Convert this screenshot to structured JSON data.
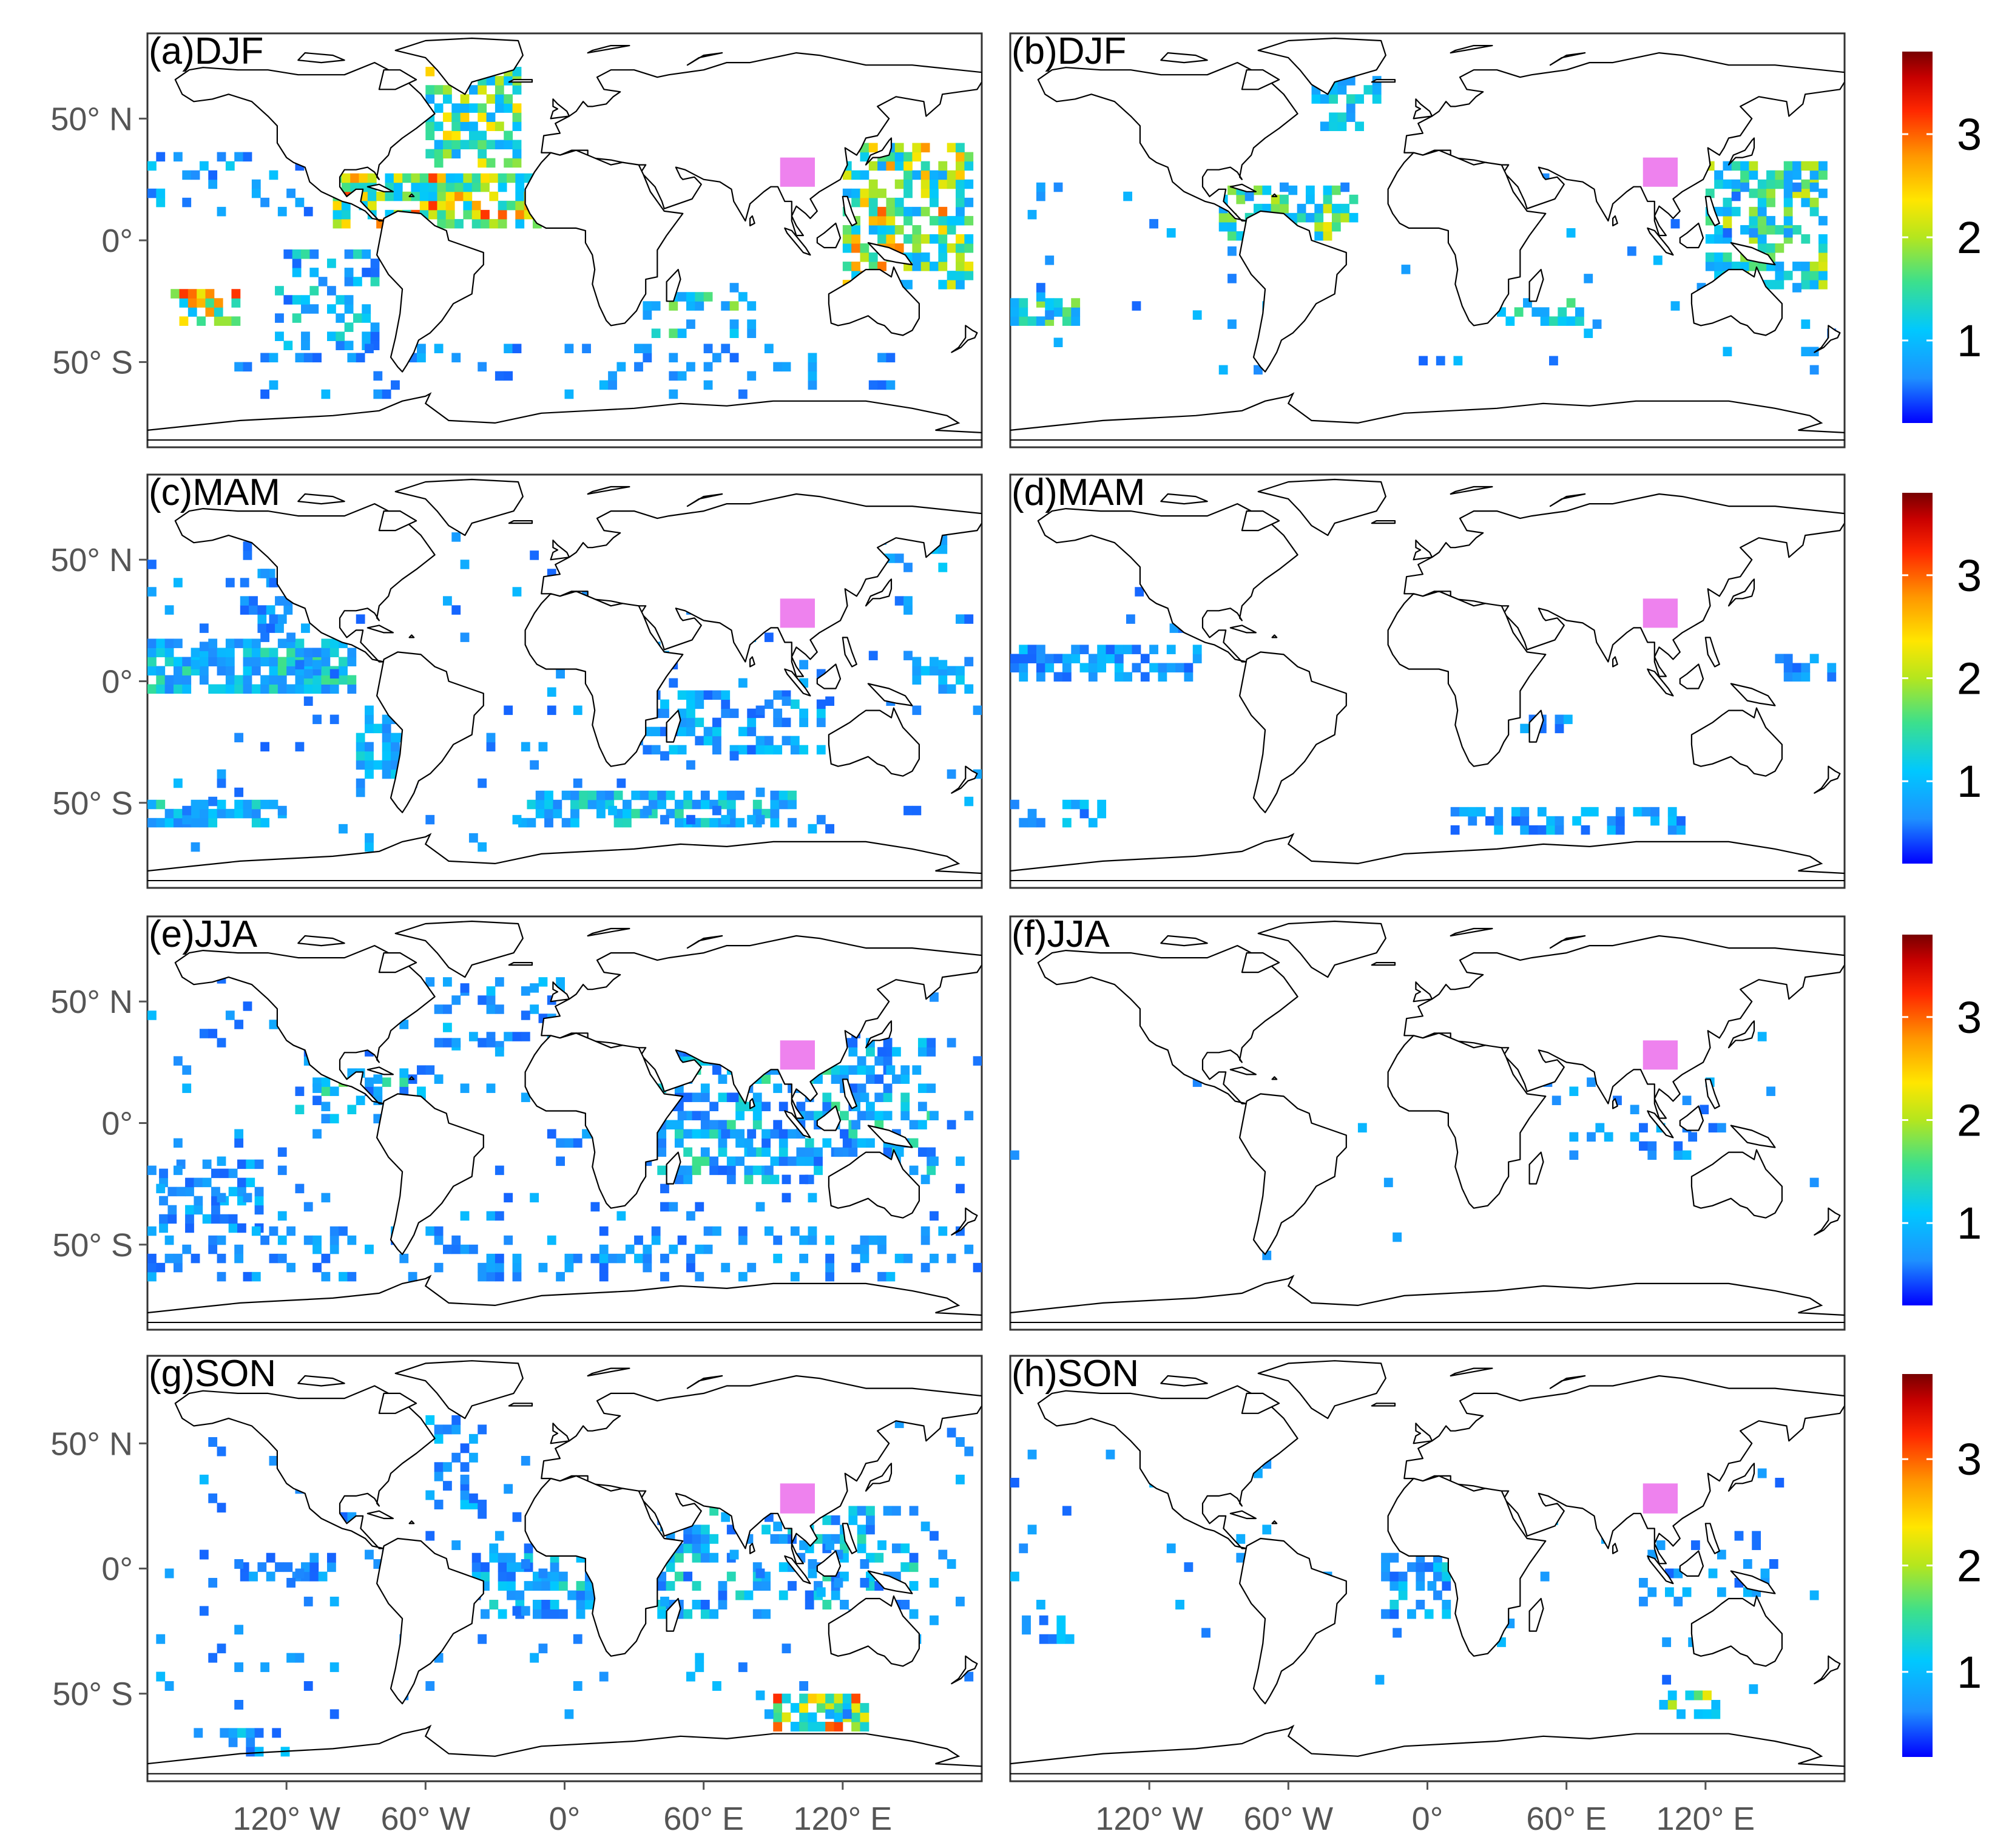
{
  "figure": {
    "latitude_tick_labels": [
      "50° N",
      "0°",
      "50° S"
    ],
    "longitude_tick_labels": [
      "120° W",
      "60° W",
      "0°",
      "60° E",
      "120° E"
    ],
    "latitude_ticks_deg": [
      50,
      0,
      -50
    ],
    "longitude_ticks_deg": [
      -120,
      -60,
      0,
      60,
      120
    ],
    "extent": {
      "lon": [
        -180,
        180
      ],
      "lat": [
        -85,
        85
      ]
    }
  },
  "colorbar": {
    "tick_labels": [
      "1",
      "2",
      "3"
    ],
    "ticks": [
      1,
      2,
      3
    ],
    "range": [
      0.2,
      3.8
    ],
    "colors": [
      "#0000ff",
      "#1e90ff",
      "#00c8ff",
      "#3ce08c",
      "#b4e61e",
      "#ffe600",
      "#ff9600",
      "#ff2800",
      "#c80000",
      "#780000"
    ]
  },
  "marker": {
    "color": "#ee82ee",
    "lon": [
      93,
      108
    ],
    "lat": [
      22,
      34
    ]
  },
  "panels": [
    {
      "label": "(a)DJF",
      "season": "DJF",
      "regions": [
        {
          "lon": [
            -100,
            -10
          ],
          "lat": [
            5,
            25
          ],
          "density": 0.8,
          "min": 1.0,
          "max": 3.2
        },
        {
          "lon": [
            -60,
            -20
          ],
          "lat": [
            30,
            70
          ],
          "density": 0.6,
          "min": 0.8,
          "max": 2.5
        },
        {
          "lon": [
            -170,
            -140
          ],
          "lat": [
            -35,
            -20
          ],
          "density": 0.7,
          "min": 1.0,
          "max": 3.3
        },
        {
          "lon": [
            120,
            175
          ],
          "lat": [
            -20,
            40
          ],
          "density": 0.6,
          "min": 0.8,
          "max": 3.0
        },
        {
          "lon": [
            -125,
            -80
          ],
          "lat": [
            -45,
            -5
          ],
          "density": 0.45,
          "min": 0.5,
          "max": 1.5
        },
        {
          "lon": [
            -180,
            -110
          ],
          "lat": [
            10,
            35
          ],
          "density": 0.25,
          "min": 0.5,
          "max": 1.2
        },
        {
          "lon": [
            30,
            80
          ],
          "lat": [
            -40,
            -20
          ],
          "density": 0.35,
          "min": 0.7,
          "max": 2.0
        },
        {
          "lon": [
            -150,
            170
          ],
          "lat": [
            -65,
            -45
          ],
          "density": 0.12,
          "min": 0.5,
          "max": 1.0
        }
      ]
    },
    {
      "label": "(b)DJF",
      "season": "DJF",
      "regions": [
        {
          "lon": [
            -90,
            -30
          ],
          "lat": [
            0,
            20
          ],
          "density": 0.6,
          "min": 0.8,
          "max": 2.3
        },
        {
          "lon": [
            -50,
            -20
          ],
          "lat": [
            45,
            65
          ],
          "density": 0.5,
          "min": 0.6,
          "max": 1.5
        },
        {
          "lon": [
            120,
            170
          ],
          "lat": [
            -20,
            30
          ],
          "density": 0.6,
          "min": 0.8,
          "max": 2.2
        },
        {
          "lon": [
            -180,
            -150
          ],
          "lat": [
            -35,
            -25
          ],
          "density": 0.6,
          "min": 0.8,
          "max": 2.0
        },
        {
          "lon": [
            30,
            70
          ],
          "lat": [
            -35,
            -25
          ],
          "density": 0.4,
          "min": 0.8,
          "max": 1.8
        },
        {
          "lon": [
            -180,
            180
          ],
          "lat": [
            -55,
            25
          ],
          "density": 0.03,
          "min": 0.5,
          "max": 1.0
        }
      ]
    },
    {
      "label": "(c)MAM",
      "season": "MAM",
      "regions": [
        {
          "lon": [
            -180,
            -90
          ],
          "lat": [
            -5,
            15
          ],
          "density": 0.75,
          "min": 0.6,
          "max": 1.6
        },
        {
          "lon": [
            -180,
            -120
          ],
          "lat": [
            -60,
            -50
          ],
          "density": 0.6,
          "min": 0.6,
          "max": 1.5
        },
        {
          "lon": [
            -20,
            100
          ],
          "lat": [
            -60,
            -45
          ],
          "density": 0.55,
          "min": 0.6,
          "max": 1.5
        },
        {
          "lon": [
            30,
            110
          ],
          "lat": [
            -30,
            -5
          ],
          "density": 0.45,
          "min": 0.5,
          "max": 1.2
        },
        {
          "lon": [
            -140,
            -100
          ],
          "lat": [
            20,
            45
          ],
          "density": 0.3,
          "min": 0.5,
          "max": 1.0
        },
        {
          "lon": [
            -90,
            -70
          ],
          "lat": [
            -40,
            -15
          ],
          "density": 0.5,
          "min": 0.6,
          "max": 1.3
        },
        {
          "lon": [
            150,
            175
          ],
          "lat": [
            -5,
            10
          ],
          "density": 0.5,
          "min": 0.6,
          "max": 1.2
        },
        {
          "lon": [
            120,
            170
          ],
          "lat": [
            45,
            60
          ],
          "density": 0.3,
          "min": 0.6,
          "max": 1.2
        },
        {
          "lon": [
            -180,
            180
          ],
          "lat": [
            -70,
            60
          ],
          "density": 0.04,
          "min": 0.5,
          "max": 1.0
        }
      ]
    },
    {
      "label": "(d)MAM",
      "season": "MAM",
      "regions": [
        {
          "lon": [
            -180,
            -95
          ],
          "lat": [
            0,
            15
          ],
          "density": 0.6,
          "min": 0.5,
          "max": 1.1
        },
        {
          "lon": [
            40,
            70
          ],
          "lat": [
            -25,
            -15
          ],
          "density": 0.4,
          "min": 0.5,
          "max": 1.0
        },
        {
          "lon": [
            10,
            110
          ],
          "lat": [
            -63,
            -55
          ],
          "density": 0.5,
          "min": 0.5,
          "max": 1.2
        },
        {
          "lon": [
            -180,
            -140
          ],
          "lat": [
            -60,
            -52
          ],
          "density": 0.4,
          "min": 0.5,
          "max": 1.2
        },
        {
          "lon": [
            150,
            175
          ],
          "lat": [
            0,
            10
          ],
          "density": 0.5,
          "min": 0.5,
          "max": 1.0
        },
        {
          "lon": [
            -130,
            -100
          ],
          "lat": [
            20,
            45
          ],
          "density": 0.2,
          "min": 0.5,
          "max": 0.9
        }
      ]
    },
    {
      "label": "(e)JJA",
      "season": "JJA",
      "regions": [
        {
          "lon": [
            40,
            160
          ],
          "lat": [
            -25,
            35
          ],
          "density": 0.45,
          "min": 0.5,
          "max": 1.6
        },
        {
          "lon": [
            -175,
            -130
          ],
          "lat": [
            -45,
            -15
          ],
          "density": 0.55,
          "min": 0.5,
          "max": 1.1
        },
        {
          "lon": [
            -180,
            180
          ],
          "lat": [
            -65,
            -45
          ],
          "density": 0.25,
          "min": 0.5,
          "max": 1.0
        },
        {
          "lon": [
            -120,
            -60
          ],
          "lat": [
            0,
            20
          ],
          "density": 0.3,
          "min": 0.5,
          "max": 1.8
        },
        {
          "lon": [
            -60,
            0
          ],
          "lat": [
            30,
            60
          ],
          "density": 0.3,
          "min": 0.5,
          "max": 1.2
        },
        {
          "lon": [
            -180,
            180
          ],
          "lat": [
            -40,
            60
          ],
          "density": 0.05,
          "min": 0.5,
          "max": 1.0
        }
      ]
    },
    {
      "label": "(f)JJA",
      "season": "JJA",
      "regions": [
        {
          "lon": [
            50,
            130
          ],
          "lat": [
            -15,
            20
          ],
          "density": 0.12,
          "min": 0.5,
          "max": 1.0
        },
        {
          "lon": [
            -180,
            180
          ],
          "lat": [
            -60,
            50
          ],
          "density": 0.006,
          "min": 0.5,
          "max": 1.0
        }
      ]
    },
    {
      "label": "(g)SON",
      "season": "SON",
      "regions": [
        {
          "lon": [
            -40,
            20
          ],
          "lat": [
            -20,
            10
          ],
          "density": 0.55,
          "min": 0.5,
          "max": 1.5
        },
        {
          "lon": [
            90,
            130
          ],
          "lat": [
            -65,
            -50
          ],
          "density": 0.75,
          "min": 1.0,
          "max": 3.3
        },
        {
          "lon": [
            40,
            150
          ],
          "lat": [
            -20,
            25
          ],
          "density": 0.35,
          "min": 0.5,
          "max": 1.5
        },
        {
          "lon": [
            -60,
            -30
          ],
          "lat": [
            20,
            60
          ],
          "density": 0.35,
          "min": 0.5,
          "max": 1.2
        },
        {
          "lon": [
            -140,
            -100
          ],
          "lat": [
            -5,
            5
          ],
          "density": 0.5,
          "min": 0.5,
          "max": 1.0
        },
        {
          "lon": [
            -160,
            -120
          ],
          "lat": [
            -75,
            -65
          ],
          "density": 0.4,
          "min": 0.5,
          "max": 1.2
        },
        {
          "lon": [
            -180,
            180
          ],
          "lat": [
            -60,
            60
          ],
          "density": 0.05,
          "min": 0.5,
          "max": 1.0
        }
      ]
    },
    {
      "label": "(h)SON",
      "season": "SON",
      "regions": [
        {
          "lon": [
            -20,
            10
          ],
          "lat": [
            -20,
            5
          ],
          "density": 0.55,
          "min": 0.5,
          "max": 1.3
        },
        {
          "lon": [
            100,
            125
          ],
          "lat": [
            -60,
            -50
          ],
          "density": 0.6,
          "min": 0.8,
          "max": 2.3
        },
        {
          "lon": [
            -175,
            -155
          ],
          "lat": [
            -30,
            -20
          ],
          "density": 0.6,
          "min": 0.5,
          "max": 1.2
        },
        {
          "lon": [
            80,
            150
          ],
          "lat": [
            -15,
            15
          ],
          "density": 0.2,
          "min": 0.5,
          "max": 1.0
        },
        {
          "lon": [
            -180,
            180
          ],
          "lat": [
            -50,
            50
          ],
          "density": 0.015,
          "min": 0.5,
          "max": 1.0
        }
      ]
    }
  ]
}
